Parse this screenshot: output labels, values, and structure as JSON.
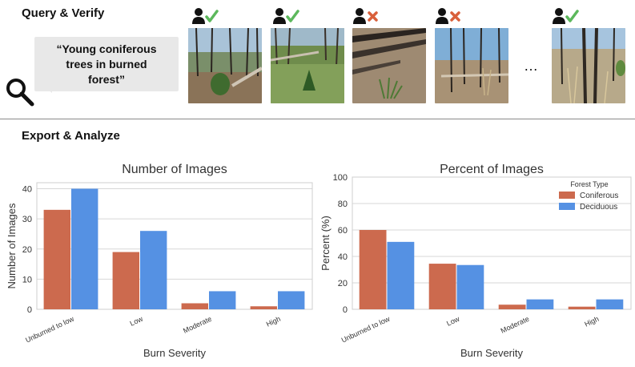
{
  "sections": {
    "query_title": "Query & Verify",
    "export_title": "Export & Analyze"
  },
  "query": {
    "text": "“Young coniferous trees in burned forest”",
    "ellipsis": "…"
  },
  "results": [
    {
      "verdict": "match",
      "icon": "check-icon",
      "color": "#5cb85c"
    },
    {
      "verdict": "match",
      "icon": "check-icon",
      "color": "#5cb85c"
    },
    {
      "verdict": "no-match",
      "icon": "x-icon",
      "color": "#d9603b"
    },
    {
      "verdict": "no-match",
      "icon": "x-icon",
      "color": "#d9603b"
    },
    {
      "verdict": "match",
      "icon": "check-icon",
      "color": "#5cb85c"
    }
  ],
  "chart_data": [
    {
      "type": "bar",
      "title": "Number of Images",
      "xlabel": "Burn Severity",
      "ylabel": "Number of Images",
      "categories": [
        "Unburned to low",
        "Low",
        "Moderate",
        "High"
      ],
      "ylim": [
        0,
        42
      ],
      "yticks": [
        0,
        10,
        20,
        30,
        40
      ],
      "grid": true,
      "legend": null,
      "series": [
        {
          "name": "Coniferous",
          "color": "#cc6a4e",
          "values": [
            33,
            19,
            2,
            1
          ]
        },
        {
          "name": "Deciduous",
          "color": "#5591e3",
          "values": [
            40,
            26,
            6,
            6
          ]
        }
      ]
    },
    {
      "type": "bar",
      "title": "Percent of Images",
      "xlabel": "Burn Severity",
      "ylabel": "Percent (%)",
      "categories": [
        "Unburned to low",
        "Low",
        "Moderate",
        "High"
      ],
      "ylim": [
        0,
        100
      ],
      "yticks": [
        0,
        20,
        40,
        60,
        80,
        100
      ],
      "grid": true,
      "legend": {
        "title": "Forest Type",
        "placement": "top-right"
      },
      "series": [
        {
          "name": "Coniferous",
          "color": "#cc6a4e",
          "values": [
            60,
            34.5,
            3.5,
            2
          ]
        },
        {
          "name": "Deciduous",
          "color": "#5591e3",
          "values": [
            51,
            33.5,
            7.5,
            7.5
          ]
        }
      ]
    }
  ]
}
